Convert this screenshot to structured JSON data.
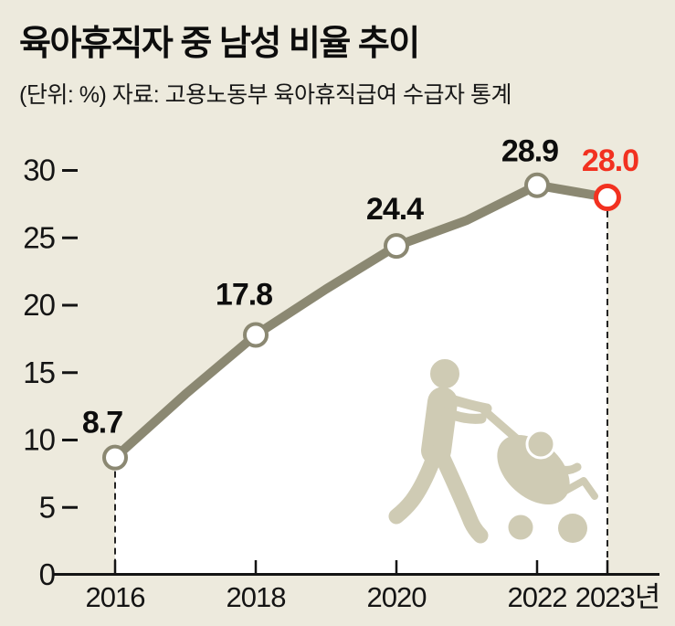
{
  "title": "육아휴직자 중 남성 비율 추이",
  "subtitle": "(단위: %) 자료: 고용노동부 육아휴직급여 수급자 통계",
  "colors": {
    "background": "#EDEADD",
    "area_fill": "#FFFFFF",
    "line": "#8B8872",
    "marker_fill": "#FFFFFF",
    "highlight_red": "#F23120",
    "axis": "#141414",
    "text": "#0d0d0d",
    "pictogram": "#CFCBB4",
    "guide_dash": "#222222"
  },
  "icons": {
    "pictogram": "man-pushing-stroller-icon"
  },
  "chart_data": {
    "type": "line",
    "title": "육아휴직자 중 남성 비율 추이",
    "unit_note": "(단위: %)",
    "source": "자료: 고용노동부 육아휴직급여 수급자 통계",
    "x": [
      2016,
      2017,
      2018,
      2019,
      2020,
      2021,
      2022,
      2023
    ],
    "values": [
      8.7,
      13.4,
      17.8,
      21.2,
      24.4,
      26.3,
      28.9,
      28.0
    ],
    "estimated_unlabeled_years": [
      2017,
      2019,
      2021
    ],
    "labeled_points": [
      {
        "year": 2016,
        "value": 8.7,
        "label": "8.7",
        "highlight": false
      },
      {
        "year": 2018,
        "value": 17.8,
        "label": "17.8",
        "highlight": false
      },
      {
        "year": 2020,
        "value": 24.4,
        "label": "24.4",
        "highlight": false
      },
      {
        "year": 2022,
        "value": 28.9,
        "label": "28.9",
        "highlight": false
      },
      {
        "year": 2023,
        "value": 28.0,
        "label": "28.0",
        "highlight": true
      }
    ],
    "ylim": [
      0,
      30
    ],
    "yticks": [
      0,
      5,
      10,
      15,
      20,
      25,
      30
    ],
    "xtick_years": [
      2016,
      2018,
      2020,
      2022,
      2023
    ],
    "xtick_labels": [
      "2016",
      "2018",
      "2020",
      "2022",
      "2023년"
    ],
    "dashed_guide_years": [
      2016,
      2023
    ],
    "grid": false,
    "legend": false,
    "ylabel": "",
    "xlabel": ""
  }
}
